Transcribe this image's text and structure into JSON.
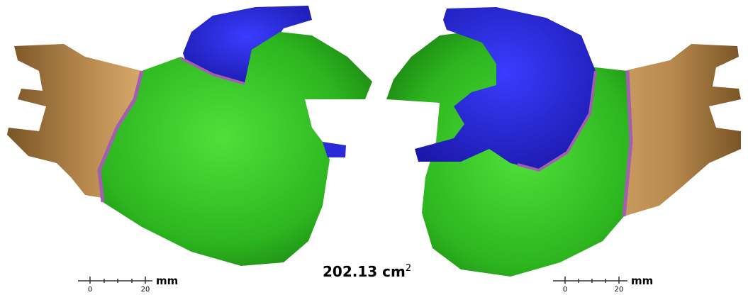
{
  "measurement": {
    "value": "202.13",
    "unit": "cm",
    "exponent": "2"
  },
  "scale_bars": [
    {
      "ticks": [
        "0",
        "20"
      ],
      "unit": "mm"
    },
    {
      "ticks": [
        "0",
        "20"
      ],
      "unit": "mm"
    }
  ]
}
